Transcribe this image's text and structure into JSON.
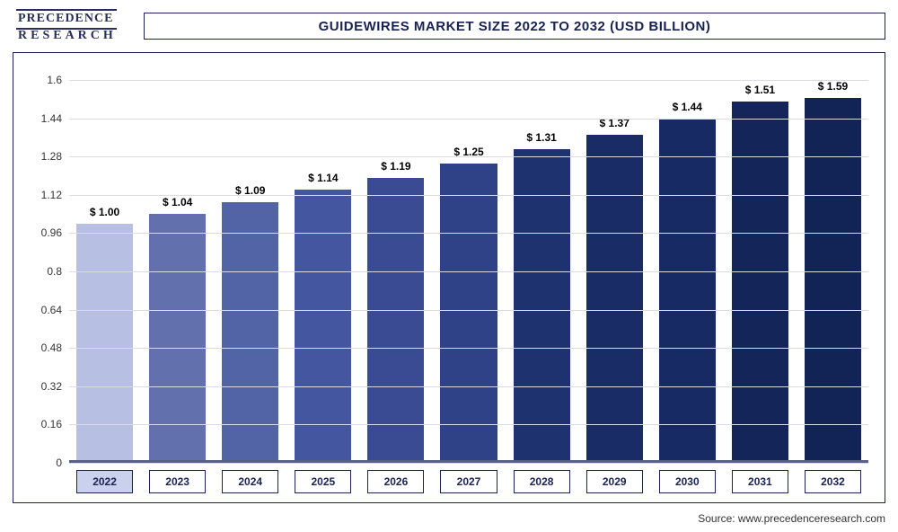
{
  "watermark": {
    "line1": "PRECEDENCE",
    "line2": "RESEARCH",
    "color": "#2a2f5a"
  },
  "title": {
    "text": "GUIDEWIRES MARKET SIZE 2022 TO 2032 (USD BILLION)",
    "fontsize": 15,
    "color": "#1a2250",
    "border_color": "#1a2250"
  },
  "chart": {
    "type": "bar",
    "background_color": "#ffffff",
    "frame_border_color": "#1a2250",
    "ylim": [
      0,
      1.6
    ],
    "ytick_step": 0.16,
    "yticks": [
      0,
      0.16,
      0.32,
      0.48,
      0.64,
      0.8,
      0.96,
      1.12,
      1.28,
      1.44,
      1.6
    ],
    "grid_color": "#d9dbe8",
    "baseline_color": "#5a5f8a",
    "label_fontsize": 12,
    "value_label_color": "#000000",
    "value_label_fontsize": 12,
    "value_prefix": "$ ",
    "bar_width": 0.84,
    "categories": [
      "2022",
      "2023",
      "2024",
      "2025",
      "2026",
      "2027",
      "2028",
      "2029",
      "2030",
      "2031",
      "2032"
    ],
    "values": [
      1.0,
      1.04,
      1.09,
      1.14,
      1.19,
      1.25,
      1.31,
      1.37,
      1.44,
      1.51,
      1.59
    ],
    "value_labels": [
      "$ 1.00",
      "$ 1.04",
      "$ 1.09",
      "$ 1.14",
      "$ 1.19",
      "$ 1.25",
      "$ 1.31",
      "$ 1.37",
      "$ 1.44",
      "$ 1.51",
      "$ 1.59"
    ],
    "bar_colors": [
      "#b7c0e3",
      "#6271ad",
      "#5263a6",
      "#44569f",
      "#3a4b94",
      "#2f4288",
      "#1f3270",
      "#1a2c66",
      "#172a63",
      "#142659",
      "#122455"
    ],
    "xlabel_highlight_index": 0,
    "xlabel_box": {
      "border_color": "#1a2250",
      "text_color": "#1a2250",
      "highlight_bg": "#c9d1ec",
      "normal_bg": "#ffffff"
    }
  },
  "source": {
    "label": "Source: ",
    "url": "www.precedenceresearch.com",
    "color": "#333333",
    "fontsize": 12
  }
}
